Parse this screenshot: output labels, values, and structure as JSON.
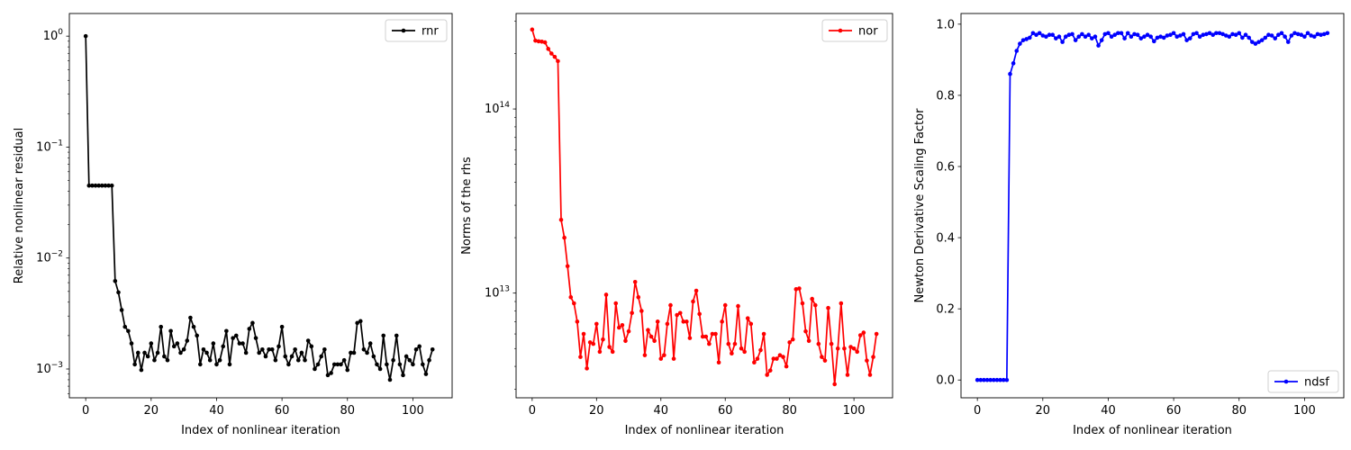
{
  "chart_data": [
    {
      "type": "line",
      "xlabel": "Index of nonlinear iteration",
      "ylabel": "Relative nonlinear residual",
      "yscale": "log",
      "xlim": [
        -5,
        112
      ],
      "ylim": [
        0.00055,
        1.6
      ],
      "xticks": [
        0,
        20,
        40,
        60,
        80,
        100
      ],
      "yticks": [
        0.001,
        0.01,
        0.1,
        1
      ],
      "ytick_labels": [
        {
          "base": "10",
          "exp": "−3"
        },
        {
          "base": "10",
          "exp": "−2"
        },
        {
          "base": "10",
          "exp": "−1"
        },
        {
          "base": "10",
          "exp": "0"
        }
      ],
      "grid": false,
      "legend": {
        "placement": "top-right",
        "entries": [
          "rnr"
        ]
      },
      "series": [
        {
          "name": "rnr",
          "color": "#000000",
          "values": [
            1.0,
            0.045,
            0.045,
            0.045,
            0.045,
            0.045,
            0.045,
            0.045,
            0.045,
            0.0062,
            0.0049,
            0.0034,
            0.0024,
            0.0022,
            0.0017,
            0.0011,
            0.0014,
            0.00098,
            0.0014,
            0.0013,
            0.0017,
            0.0012,
            0.0014,
            0.0024,
            0.0013,
            0.0012,
            0.0022,
            0.0016,
            0.0017,
            0.0014,
            0.0015,
            0.0018,
            0.0029,
            0.0024,
            0.002,
            0.0011,
            0.0015,
            0.0014,
            0.0012,
            0.0017,
            0.0011,
            0.0012,
            0.0016,
            0.0022,
            0.0011,
            0.0019,
            0.002,
            0.0017,
            0.0017,
            0.0014,
            0.0023,
            0.0026,
            0.0019,
            0.0014,
            0.0015,
            0.0013,
            0.0015,
            0.0015,
            0.0012,
            0.0016,
            0.0024,
            0.0013,
            0.0011,
            0.0013,
            0.0015,
            0.0012,
            0.0014,
            0.0012,
            0.0018,
            0.0016,
            0.001,
            0.0011,
            0.0013,
            0.0015,
            0.00088,
            0.00092,
            0.0011,
            0.0011,
            0.0011,
            0.0012,
            0.00098,
            0.0014,
            0.0014,
            0.0026,
            0.0027,
            0.0015,
            0.0014,
            0.0017,
            0.0013,
            0.0011,
            0.001,
            0.002,
            0.0011,
            0.0008,
            0.0012,
            0.002,
            0.0011,
            0.00088,
            0.0013,
            0.0012,
            0.0011,
            0.0015,
            0.0016,
            0.0011,
            0.0009,
            0.0012,
            0.0015
          ]
        }
      ]
    },
    {
      "type": "line",
      "xlabel": "Index of nonlinear iteration",
      "ylabel": "Norms of the rhs",
      "yscale": "log",
      "xlim": [
        -5,
        112
      ],
      "ylim": [
        2700000000000.0,
        330000000000000.0
      ],
      "xticks": [
        0,
        20,
        40,
        60,
        80,
        100
      ],
      "yticks": [
        10000000000000.0,
        100000000000000.0
      ],
      "ytick_labels": [
        {
          "base": "10",
          "exp": "13"
        },
        {
          "base": "10",
          "exp": "14"
        }
      ],
      "grid": false,
      "legend": {
        "placement": "top-right",
        "entries": [
          "nor"
        ]
      },
      "series": [
        {
          "name": "nor",
          "color": "#ff0000",
          "values": [
            270000000000000.0,
            235000000000000.0,
            233000000000000.0,
            232000000000000.0,
            230000000000000.0,
            212000000000000.0,
            200000000000000.0,
            192000000000000.0,
            182000000000000.0,
            25000000000000.0,
            20000000000000.0,
            14000000000000.0,
            9500000000000.0,
            8800000000000.0,
            7000000000000.0,
            4500000000000.0,
            6000000000000.0,
            3900000000000.0,
            5400000000000.0,
            5300000000000.0,
            6800000000000.0,
            4800000000000.0,
            5600000000000.0,
            9800000000000.0,
            5100000000000.0,
            4800000000000.0,
            8800000000000.0,
            6500000000000.0,
            6700000000000.0,
            5500000000000.0,
            6200000000000.0,
            7800000000000.0,
            11500000000000.0,
            9500000000000.0,
            8000000000000.0,
            4600000000000.0,
            6300000000000.0,
            5800000000000.0,
            5500000000000.0,
            7000000000000.0,
            4400000000000.0,
            4600000000000.0,
            6800000000000.0,
            8600000000000.0,
            4400000000000.0,
            7600000000000.0,
            7800000000000.0,
            7000000000000.0,
            7000000000000.0,
            5700000000000.0,
            9000000000000.0,
            10300000000000.0,
            7700000000000.0,
            5800000000000.0,
            5800000000000.0,
            5300000000000.0,
            6000000000000.0,
            6000000000000.0,
            4200000000000.0,
            7000000000000.0,
            8600000000000.0,
            5300000000000.0,
            4700000000000.0,
            5300000000000.0,
            8500000000000.0,
            5000000000000.0,
            4800000000000.0,
            7300000000000.0,
            6800000000000.0,
            4200000000000.0,
            4400000000000.0,
            4900000000000.0,
            6000000000000.0,
            3600000000000.0,
            3800000000000.0,
            4400000000000.0,
            4400000000000.0,
            4600000000000.0,
            4500000000000.0,
            4000000000000.0,
            5400000000000.0,
            5600000000000.0,
            10500000000000.0,
            10600000000000.0,
            8800000000000.0,
            6200000000000.0,
            5500000000000.0,
            9300000000000.0,
            8600000000000.0,
            5300000000000.0,
            4500000000000.0,
            4300000000000.0,
            8300000000000.0,
            5300000000000.0,
            3200000000000.0,
            5000000000000.0,
            8800000000000.0,
            5000000000000.0,
            3600000000000.0,
            5100000000000.0,
            5000000000000.0,
            4800000000000.0,
            5900000000000.0,
            6100000000000.0,
            4300000000000.0,
            3600000000000.0,
            4500000000000.0,
            6000000000000.0
          ]
        }
      ]
    },
    {
      "type": "line",
      "xlabel": "Index of nonlinear iteration",
      "ylabel": "Newton Derivative Scaling Factor",
      "yscale": "linear",
      "xlim": [
        -5,
        112
      ],
      "ylim": [
        -0.05,
        1.03
      ],
      "xticks": [
        0,
        20,
        40,
        60,
        80,
        100
      ],
      "yticks": [
        0.0,
        0.2,
        0.4,
        0.6,
        0.8,
        1.0
      ],
      "ytick_labels": [
        "0.0",
        "0.2",
        "0.4",
        "0.6",
        "0.8",
        "1.0"
      ],
      "grid": false,
      "legend": {
        "placement": "bottom-right",
        "entries": [
          "ndsf"
        ]
      },
      "series": [
        {
          "name": "ndsf",
          "color": "#0000ff",
          "values": [
            0.0,
            0.0,
            0.0,
            0.0,
            0.0,
            0.0,
            0.0,
            0.0,
            0.0,
            0.0,
            0.86,
            0.89,
            0.925,
            0.945,
            0.955,
            0.958,
            0.962,
            0.975,
            0.97,
            0.975,
            0.968,
            0.965,
            0.97,
            0.97,
            0.96,
            0.965,
            0.95,
            0.965,
            0.97,
            0.972,
            0.955,
            0.965,
            0.972,
            0.965,
            0.97,
            0.96,
            0.965,
            0.94,
            0.955,
            0.972,
            0.975,
            0.965,
            0.97,
            0.975,
            0.975,
            0.96,
            0.975,
            0.965,
            0.972,
            0.97,
            0.96,
            0.965,
            0.97,
            0.965,
            0.952,
            0.962,
            0.965,
            0.962,
            0.968,
            0.97,
            0.975,
            0.965,
            0.968,
            0.972,
            0.955,
            0.96,
            0.972,
            0.975,
            0.965,
            0.97,
            0.972,
            0.975,
            0.97,
            0.975,
            0.975,
            0.972,
            0.968,
            0.965,
            0.972,
            0.97,
            0.975,
            0.962,
            0.97,
            0.962,
            0.95,
            0.945,
            0.95,
            0.955,
            0.962,
            0.97,
            0.968,
            0.96,
            0.97,
            0.975,
            0.965,
            0.95,
            0.968,
            0.975,
            0.972,
            0.97,
            0.965,
            0.975,
            0.968,
            0.965,
            0.972,
            0.97,
            0.972,
            0.975
          ]
        }
      ]
    }
  ]
}
